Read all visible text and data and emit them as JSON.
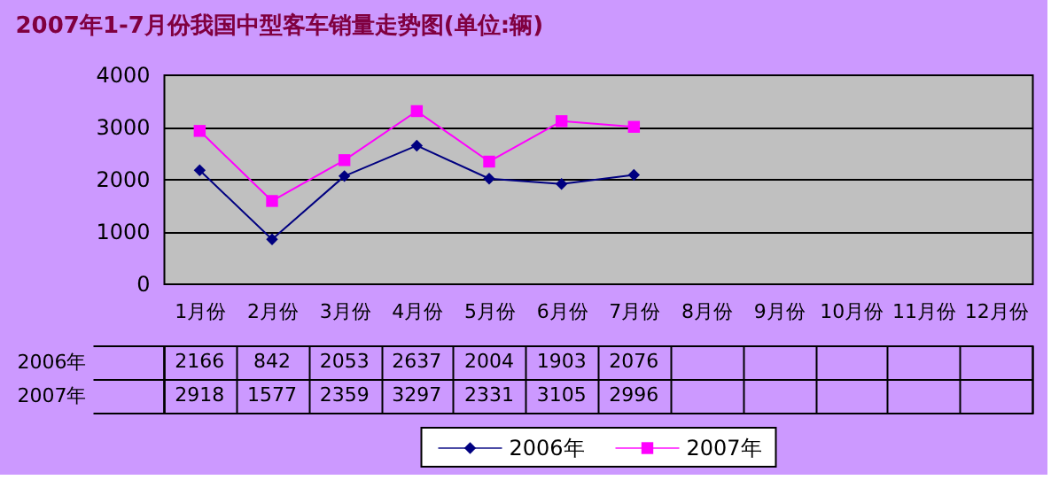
{
  "chart_data": {
    "type": "line",
    "title": "2007年1-7月份我国中型客车销量走势图(单位:辆)",
    "categories": [
      "1月份",
      "2月份",
      "3月份",
      "4月份",
      "5月份",
      "6月份",
      "7月份",
      "8月份",
      "9月份",
      "10月份",
      "11月份",
      "12月份"
    ],
    "series": [
      {
        "name": "2006年",
        "color": "#000080",
        "marker": "diamond",
        "values": [
          2166,
          842,
          2053,
          2637,
          2004,
          1903,
          2076,
          null,
          null,
          null,
          null,
          null
        ]
      },
      {
        "name": "2007年",
        "color": "#ff00ff",
        "marker": "square",
        "values": [
          2918,
          1577,
          2359,
          3297,
          2331,
          3105,
          2996,
          null,
          null,
          null,
          null,
          null
        ]
      }
    ],
    "ylim": [
      0,
      4000
    ],
    "yticks": [
      0,
      1000,
      2000,
      3000,
      4000
    ],
    "grid": "y",
    "legend": "bottom",
    "data_labels": true,
    "line_style": "solid"
  }
}
